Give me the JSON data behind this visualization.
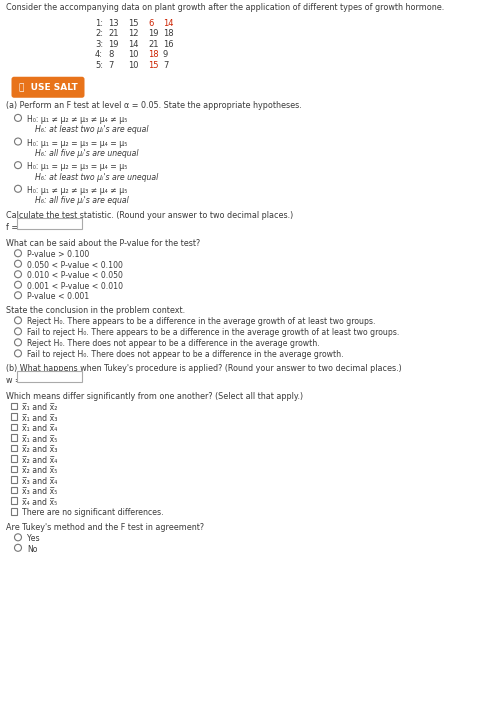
{
  "bg_color": "#ffffff",
  "dark": "#3a3a3a",
  "orange": "#e8731a",
  "red": "#cc2200",
  "title": "Consider the accompanying data on plant growth after the application of different types of growth hormone.",
  "data_labels": [
    "1:",
    "2:",
    "3:",
    "4:",
    "5:"
  ],
  "data_values": [
    [
      "13",
      "15",
      "6",
      "14"
    ],
    [
      "21",
      "12",
      "19",
      "18"
    ],
    [
      "19",
      "14",
      "21",
      "16"
    ],
    [
      "8",
      "10",
      "18",
      "9"
    ],
    [
      "7",
      "10",
      "15",
      "7"
    ]
  ],
  "row_val_colors": [
    [
      "#3a3a3a",
      "#3a3a3a",
      "#cc2200",
      "#cc2200"
    ],
    [
      "#3a3a3a",
      "#3a3a3a",
      "#3a3a3a",
      "#3a3a3a"
    ],
    [
      "#3a3a3a",
      "#3a3a3a",
      "#3a3a3a",
      "#3a3a3a"
    ],
    [
      "#3a3a3a",
      "#3a3a3a",
      "#cc2200",
      "#3a3a3a"
    ],
    [
      "#3a3a3a",
      "#3a3a3a",
      "#cc2200",
      "#3a3a3a"
    ]
  ],
  "section_a_text": "(a) Perform an F test at level α = 0.05. State the appropriate hypotheses.",
  "hyp_h0": [
    "H₀: μ₁ ≠ μ₂ ≠ μ₃ ≠ μ₄ ≠ μ₅",
    "H₀: μ₁ = μ₂ = μ₃ = μ₄ = μ₅",
    "H₀: μ₁ = μ₂ = μ₃ = μ₄ = μ₅",
    "H₀: μ₁ ≠ μ₂ ≠ μ₃ ≠ μ₄ ≠ μ₅"
  ],
  "hyp_ha": [
    "H₆: at least two μᵢ's are equal",
    "H₆: all five μᵢ's are unequal",
    "H₆: at least two μᵢ's are unequal",
    "H₆: all five μᵢ's are equal"
  ],
  "calc_text": "Calculate the test statistic. (Round your answer to two decimal places.)",
  "f_label": "f =",
  "pvalue_question": "What can be said about the P-value for the test?",
  "pvalue_options": [
    "P-value > 0.100",
    "0.050 < P-value < 0.100",
    "0.010 < P-value < 0.050",
    "0.001 < P-value < 0.010",
    "P-value < 0.001"
  ],
  "conclusion_label": "State the conclusion in the problem context.",
  "conclusion_options": [
    "Reject H₀. There appears to be a difference in the average growth of at least two groups.",
    "Fail to reject H₀. There appears to be a difference in the average growth of at least two groups.",
    "Reject H₀. There does not appear to be a difference in the average growth.",
    "Fail to reject H₀. There does not appear to be a difference in the average growth."
  ],
  "section_b_text": "(b) What happens when Tukey's procedure is applied? (Round your answer to two decimal places.)",
  "w_label": "w =",
  "which_means_label": "Which means differ significantly from one another? (Select all that apply.)",
  "means_options": [
    "x̅₁ and x̅₂",
    "x̅₁ and x̅₃",
    "x̅₁ and x̅₄",
    "x̅₁ and x̅₅",
    "x̅₂ and x̅₃",
    "x̅₂ and x̅₄",
    "x̅₂ and x̅₅",
    "x̅₃ and x̅₄",
    "x̅₃ and x̅₅",
    "x̅₄ and x̅₅",
    "There are no significant differences."
  ],
  "agreement_label": "Are Tukey's method and the F test in agreement?",
  "agreement_options": [
    "Yes",
    "No"
  ]
}
